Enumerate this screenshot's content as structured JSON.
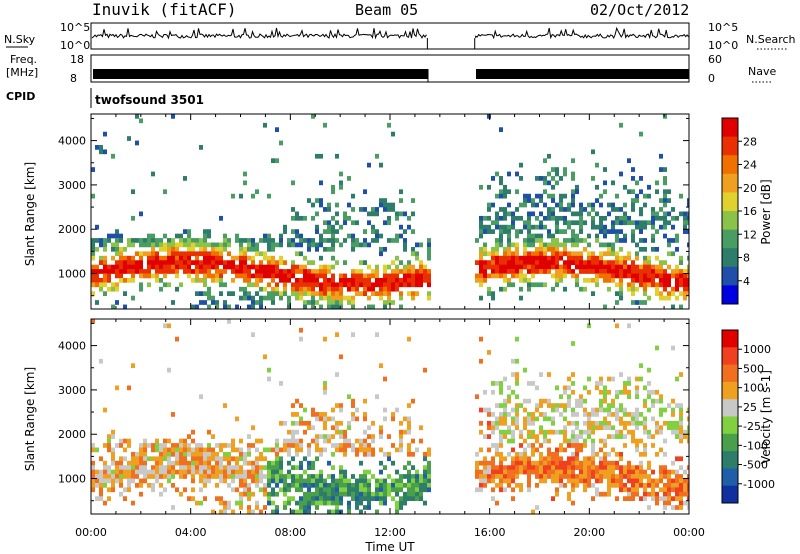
{
  "header": {
    "station": "Inuvik (fitACF)",
    "beam": "Beam 05",
    "date": "02/Oct/2012"
  },
  "top_panels": {
    "nsky": {
      "label": "N.Sky",
      "ticks": [
        "10^5",
        "10^0"
      ]
    },
    "nsearch": {
      "label": "N.Search",
      "ticks": [
        "10^5",
        "10^0"
      ]
    },
    "freq": {
      "label_line1": "Freq.",
      "label_line2": "[MHz]",
      "ticks": [
        "18",
        "8"
      ]
    },
    "nave": {
      "label": "Nave",
      "ticks": [
        "60",
        "0"
      ]
    },
    "cpid": {
      "label": "CPID",
      "value": "twofsound 3501"
    }
  },
  "chart_data": [
    {
      "type": "heatmap",
      "panel": "power",
      "ylabel": "Slant Range [km]",
      "colorbar_label": "Power [dB]",
      "ylim": [
        200,
        4600
      ],
      "yticks": [
        1000,
        2000,
        3000,
        4000
      ],
      "colorbar_ticks": [
        "28",
        "24",
        "20",
        "16",
        "12",
        "8",
        "4"
      ],
      "colorscale": [
        "#0000e0",
        "#1f4fa8",
        "#2e7d6b",
        "#4a9d62",
        "#8bc34a",
        "#e0d030",
        "#f0a020",
        "#f07000",
        "#e83000",
        "#e00000"
      ],
      "data_gap_hours": [
        13.5,
        15.4
      ]
    },
    {
      "type": "heatmap",
      "panel": "velocity",
      "ylabel": "Slant Range [km]",
      "colorbar_label": "Velocity [m s-1]",
      "ylim": [
        200,
        4600
      ],
      "yticks": [
        1000,
        2000,
        3000,
        4000
      ],
      "colorbar_ticks": [
        "1000",
        "500",
        "100",
        "25",
        "-25",
        "-100",
        "-500",
        "-1000"
      ],
      "colorscale": [
        "#1030a0",
        "#205fa8",
        "#2e7d6b",
        "#4aa04a",
        "#80d040",
        "#c8c8c8",
        "#f0a020",
        "#f07020",
        "#f04020",
        "#e00000"
      ],
      "data_gap_hours": [
        13.5,
        15.4
      ]
    }
  ],
  "xaxis": {
    "label": "Time UT",
    "ticks": [
      "00:00",
      "04:00",
      "08:00",
      "12:00",
      "16:00",
      "20:00",
      "00:00"
    ],
    "range_hours": [
      0,
      24
    ]
  }
}
